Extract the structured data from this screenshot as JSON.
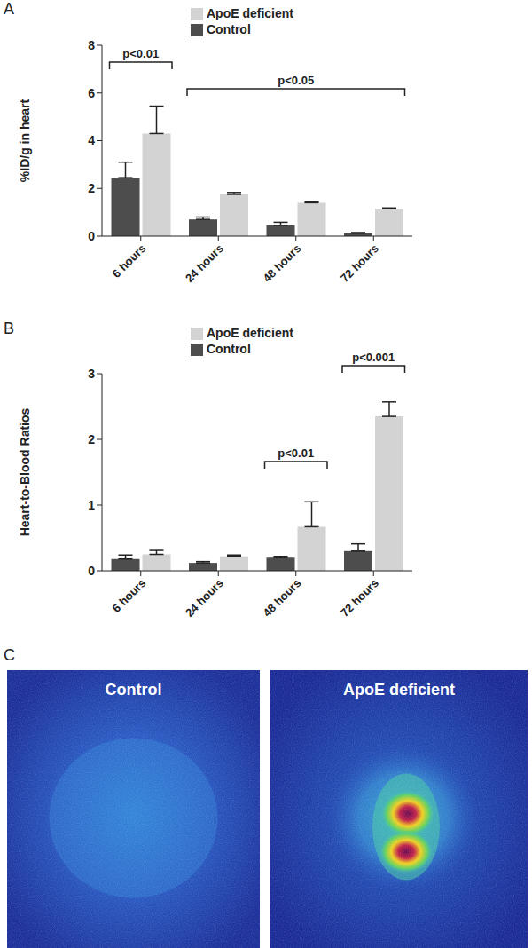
{
  "chart_data": [
    {
      "panel_label": "A",
      "type": "bar",
      "ylabel": "%ID/g in heart",
      "categories": [
        "6 hours",
        "24 hours",
        "48 hours",
        "72 hours"
      ],
      "series": [
        {
          "name": "Control",
          "color": "#4d4d4d",
          "values": [
            2.45,
            0.7,
            0.45,
            0.12
          ],
          "errors": [
            0.65,
            0.1,
            0.13,
            0.03
          ]
        },
        {
          "name": "ApoE deficient",
          "color": "#d3d3d3",
          "values": [
            4.3,
            1.75,
            1.4,
            1.15
          ],
          "errors": [
            1.15,
            0.08,
            0.03,
            0.03
          ]
        }
      ],
      "ylim": [
        0,
        8
      ],
      "yticks": [
        0,
        2,
        4,
        6,
        8
      ],
      "grid": false,
      "legend": "top",
      "annotations": [
        {
          "text": "p<0.01",
          "from": "6 hours",
          "to": "6 hours"
        },
        {
          "text": "p<0.05",
          "from": "24 hours",
          "to": "72 hours"
        }
      ]
    },
    {
      "panel_label": "B",
      "type": "bar",
      "ylabel": "Heart-to-Blood Ratios",
      "categories": [
        "6 hours",
        "24 hours",
        "48 hours",
        "72 hours"
      ],
      "series": [
        {
          "name": "Control",
          "color": "#4d4d4d",
          "values": [
            0.18,
            0.12,
            0.2,
            0.3
          ],
          "errors": [
            0.06,
            0.02,
            0.02,
            0.11
          ]
        },
        {
          "name": "ApoE deficient",
          "color": "#d3d3d3",
          "values": [
            0.25,
            0.22,
            0.67,
            2.35
          ],
          "errors": [
            0.06,
            0.02,
            0.38,
            0.22
          ]
        }
      ],
      "ylim": [
        0,
        3
      ],
      "yticks": [
        0,
        1,
        2,
        3
      ],
      "grid": false,
      "legend": "top",
      "annotations": [
        {
          "text": "p<0.01",
          "from": "48 hours",
          "to": "48 hours"
        },
        {
          "text": "p<0.001",
          "from": "72 hours",
          "to": "72 hours"
        }
      ]
    }
  ],
  "image_panel": {
    "panel_label": "C",
    "images": [
      {
        "title": "Control"
      },
      {
        "title": "ApoE deficient"
      }
    ]
  }
}
